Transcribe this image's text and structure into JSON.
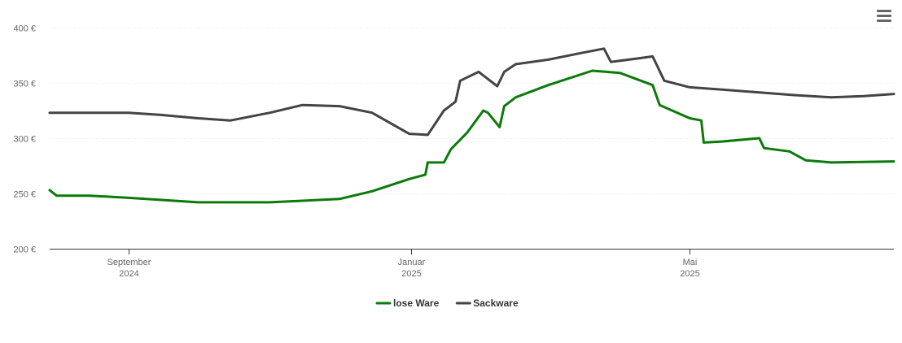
{
  "chart_data": {
    "type": "line",
    "title": "",
    "xlabel": "",
    "ylabel": "",
    "x_range": [
      "2024-07-29",
      "2025-07-28"
    ],
    "ylim": [
      200,
      400
    ],
    "y_ticks": [
      200,
      250,
      300,
      350,
      400
    ],
    "y_tick_labels": [
      "200 €",
      "250 €",
      "300 €",
      "350 €",
      "400 €"
    ],
    "x_ticks": [
      {
        "date": "2024-09-01",
        "month": "September",
        "year": "2024"
      },
      {
        "date": "2025-01-01",
        "month": "Januar",
        "year": "2025"
      },
      {
        "date": "2025-05-01",
        "month": "Mai",
        "year": "2025"
      }
    ],
    "grid": "horizontal",
    "legend_position": "bottom-center",
    "series": [
      {
        "name": "lose Ware",
        "color": "#0a7a0a",
        "points": [
          [
            "2024-07-29",
            253
          ],
          [
            "2024-08-01",
            248
          ],
          [
            "2024-08-15",
            248
          ],
          [
            "2024-09-01",
            246
          ],
          [
            "2024-10-01",
            242
          ],
          [
            "2024-11-01",
            242
          ],
          [
            "2024-12-01",
            245
          ],
          [
            "2024-12-15",
            252
          ],
          [
            "2024-12-31",
            263
          ],
          [
            "2025-01-07",
            267
          ],
          [
            "2025-01-08",
            278
          ],
          [
            "2025-01-15",
            278
          ],
          [
            "2025-01-18",
            290
          ],
          [
            "2025-01-25",
            305
          ],
          [
            "2025-02-01",
            325
          ],
          [
            "2025-02-03",
            323
          ],
          [
            "2025-02-08",
            310
          ],
          [
            "2025-02-10",
            329
          ],
          [
            "2025-02-15",
            337
          ],
          [
            "2025-03-01",
            348
          ],
          [
            "2025-03-20",
            361
          ],
          [
            "2025-04-01",
            359
          ],
          [
            "2025-04-15",
            348
          ],
          [
            "2025-04-18",
            330
          ],
          [
            "2025-05-01",
            318
          ],
          [
            "2025-05-06",
            316
          ],
          [
            "2025-05-07",
            296
          ],
          [
            "2025-05-15",
            297
          ],
          [
            "2025-05-31",
            300
          ],
          [
            "2025-06-02",
            291
          ],
          [
            "2025-06-13",
            288
          ],
          [
            "2025-06-20",
            280
          ],
          [
            "2025-07-01",
            278
          ],
          [
            "2025-07-28",
            279
          ]
        ]
      },
      {
        "name": "Sackware",
        "color": "#434348",
        "points": [
          [
            "2024-07-29",
            323
          ],
          [
            "2024-09-01",
            323
          ],
          [
            "2024-09-15",
            321
          ],
          [
            "2024-10-01",
            318
          ],
          [
            "2024-10-15",
            316
          ],
          [
            "2024-11-01",
            323
          ],
          [
            "2024-11-15",
            330
          ],
          [
            "2024-12-01",
            329
          ],
          [
            "2024-12-15",
            323
          ],
          [
            "2024-12-31",
            304
          ],
          [
            "2025-01-08",
            303
          ],
          [
            "2025-01-15",
            325
          ],
          [
            "2025-01-20",
            333
          ],
          [
            "2025-01-22",
            352
          ],
          [
            "2025-01-30",
            360
          ],
          [
            "2025-02-07",
            347
          ],
          [
            "2025-02-10",
            360
          ],
          [
            "2025-02-15",
            367
          ],
          [
            "2025-03-01",
            371
          ],
          [
            "2025-03-15",
            377
          ],
          [
            "2025-03-25",
            381
          ],
          [
            "2025-03-28",
            369
          ],
          [
            "2025-04-08",
            372
          ],
          [
            "2025-04-15",
            374
          ],
          [
            "2025-04-20",
            352
          ],
          [
            "2025-05-01",
            346
          ],
          [
            "2025-05-15",
            344
          ],
          [
            "2025-06-15",
            339
          ],
          [
            "2025-07-01",
            337
          ],
          [
            "2025-07-15",
            338
          ],
          [
            "2025-07-28",
            340
          ]
        ]
      }
    ]
  },
  "ui": {
    "menu_icon": "hamburger-menu-icon"
  }
}
